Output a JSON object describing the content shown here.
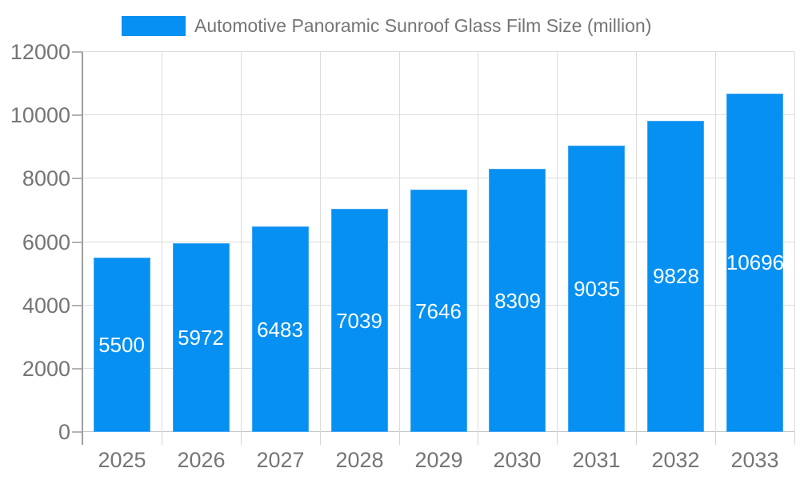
{
  "legend": {
    "label": "Automotive Panoramic Sunroof Glass Film Size (million)",
    "swatch_color": "#0590F2",
    "position": "top"
  },
  "chart_data": {
    "type": "bar",
    "title": "Automotive Panoramic Sunroof Glass Film Size (million)",
    "categories": [
      "2025",
      "2026",
      "2027",
      "2028",
      "2029",
      "2030",
      "2031",
      "2032",
      "2033"
    ],
    "values": [
      5500,
      5972,
      6483,
      7039,
      7646,
      8309,
      9035,
      9828,
      10696
    ],
    "xlabel": "",
    "ylabel": "",
    "ylim": [
      0,
      12000
    ],
    "ytick_step": 2000,
    "ytick_labels": [
      "0",
      "2000",
      "4000",
      "6000",
      "8000",
      "10000",
      "12000"
    ],
    "grid": true,
    "legend_position": "top",
    "colors": {
      "bar": "#0590F2",
      "bar_border": "#43a7f3",
      "bar_label": "#ffffff",
      "axis_text": "#757575",
      "gridline": "#dcdcdc",
      "baseline": "#c6c6c6",
      "axis_line": "#9e9e9e",
      "background": "#ffffff"
    }
  }
}
